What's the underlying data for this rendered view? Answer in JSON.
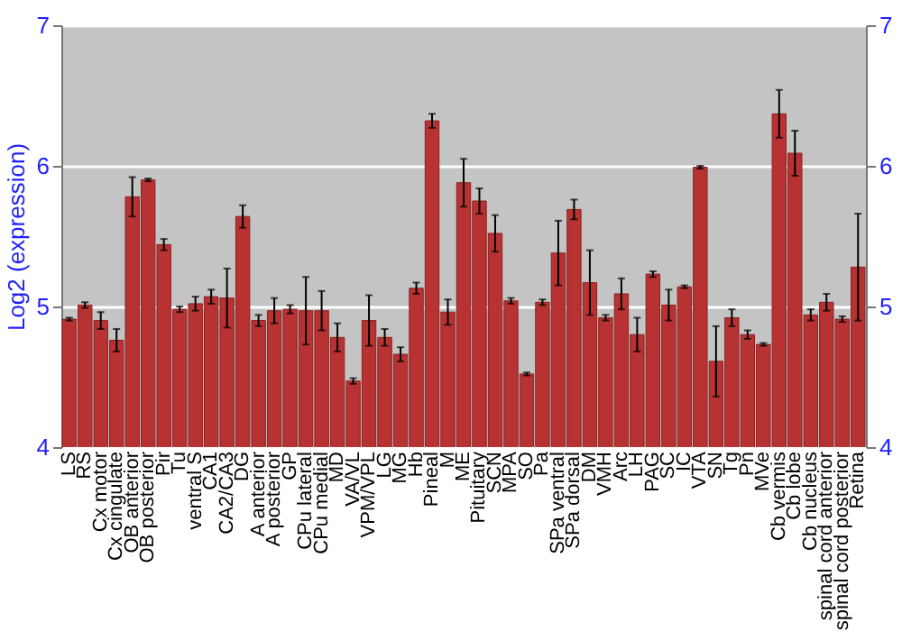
{
  "chart_data": {
    "type": "bar",
    "ylabel": "Log2 (expression)",
    "categories": [
      "LS",
      "RS",
      "Cx motor",
      "Cx cingulate",
      "OB anterior",
      "OB posterior",
      "Pir",
      "Tu",
      "ventral S",
      "CA1",
      "CA2/CA3",
      "DG",
      "A anterior",
      "A posterior",
      "GP",
      "CPu lateral",
      "CPu medial",
      "MD",
      "VA/VL",
      "VPM/VPL",
      "LG",
      "MG",
      "Hb",
      "Pineal",
      "M",
      "ME",
      "Pituitary",
      "SCN",
      "MPA",
      "SO",
      "Pa",
      "SPa ventral",
      "SPa dorsal",
      "DM",
      "VMH",
      "Arc",
      "LH",
      "PAG",
      "SC",
      "IC",
      "VTA",
      "SN",
      "Tg",
      "Pn",
      "MVe",
      "Cb vermis",
      "Cb lobe",
      "Cb nucleus",
      "spinal cord anterior",
      "spinal cord posterior",
      "Retina"
    ],
    "values": [
      4.91,
      5.01,
      4.9,
      4.76,
      5.78,
      5.9,
      5.44,
      4.98,
      5.02,
      5.07,
      5.06,
      5.64,
      4.9,
      4.97,
      4.98,
      4.97,
      4.97,
      4.78,
      4.47,
      4.9,
      4.78,
      4.66,
      5.13,
      6.32,
      4.96,
      5.88,
      5.75,
      5.52,
      5.04,
      4.52,
      5.03,
      5.38,
      5.69,
      5.17,
      4.92,
      5.09,
      4.8,
      5.23,
      5.01,
      5.14,
      5.99,
      4.61,
      4.92,
      4.8,
      4.73,
      6.37,
      6.09,
      4.94,
      5.03,
      4.91,
      5.28
    ],
    "errors": [
      0.01,
      0.02,
      0.06,
      0.08,
      0.14,
      0.01,
      0.04,
      0.02,
      0.05,
      0.05,
      0.21,
      0.08,
      0.04,
      0.09,
      0.03,
      0.24,
      0.14,
      0.1,
      0.02,
      0.18,
      0.06,
      0.05,
      0.04,
      0.05,
      0.09,
      0.17,
      0.09,
      0.13,
      0.02,
      0.01,
      0.02,
      0.23,
      0.07,
      0.23,
      0.02,
      0.11,
      0.12,
      0.02,
      0.11,
      0.01,
      0.01,
      0.25,
      0.06,
      0.03,
      0.01,
      0.17,
      0.16,
      0.04,
      0.06,
      0.02,
      0.38
    ],
    "color": "#b83232",
    "ylim": [
      4,
      7
    ],
    "yticks": [
      4,
      5,
      6,
      7
    ],
    "y2lim": [
      4,
      7
    ],
    "y2ticks": [
      4,
      5,
      6,
      7
    ],
    "grid": "y"
  }
}
